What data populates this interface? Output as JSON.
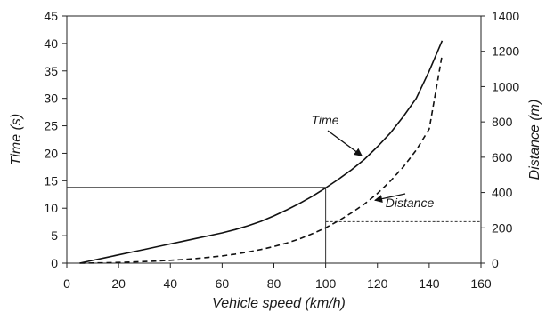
{
  "chart_data": {
    "type": "line",
    "xlabel": "Vehicle speed (km/h)",
    "ylabel_left": "Time (s)",
    "ylabel_right": "Distance (m)",
    "xlim": [
      0,
      160
    ],
    "ylim_left": [
      0,
      45
    ],
    "ylim_right": [
      0,
      1400
    ],
    "x_ticks": [
      "0",
      "20",
      "40",
      "60",
      "80",
      "100",
      "120",
      "140",
      "160"
    ],
    "y_left_ticks": [
      "0",
      "5",
      "10",
      "15",
      "20",
      "25",
      "30",
      "35",
      "40",
      "45"
    ],
    "y_right_ticks": [
      "0",
      "200",
      "400",
      "600",
      "800",
      "1000",
      "1200",
      "1400"
    ],
    "grid": false,
    "series": [
      {
        "name": "Time",
        "axis": "left",
        "style": "solid",
        "x": [
          5,
          10,
          15,
          20,
          25,
          30,
          35,
          40,
          45,
          50,
          55,
          60,
          65,
          70,
          75,
          80,
          85,
          90,
          95,
          100,
          105,
          110,
          115,
          120,
          125,
          130,
          135,
          140,
          145
        ],
        "y": [
          0,
          0.5,
          1.0,
          1.5,
          2.0,
          2.5,
          3.0,
          3.5,
          4.0,
          4.5,
          5.0,
          5.5,
          6.1,
          6.8,
          7.6,
          8.6,
          9.7,
          10.9,
          12.2,
          13.7,
          15.3,
          17.0,
          18.9,
          21.2,
          23.7,
          26.7,
          30.0,
          35.0,
          40.5
        ]
      },
      {
        "name": "Distance",
        "axis": "right",
        "style": "dashed",
        "x": [
          5,
          10,
          15,
          20,
          25,
          30,
          35,
          40,
          45,
          50,
          55,
          60,
          65,
          70,
          75,
          80,
          85,
          90,
          95,
          100,
          105,
          110,
          115,
          120,
          125,
          130,
          135,
          140,
          145
        ],
        "y": [
          0,
          1,
          2,
          4,
          6,
          9,
          12,
          16,
          20,
          26,
          33,
          41,
          51,
          63,
          77,
          94,
          114,
          138,
          167,
          200,
          240,
          285,
          335,
          395,
          465,
          545,
          640,
          760,
          1180
        ]
      }
    ],
    "annotations": [
      {
        "text": "Time",
        "target_series": "Time",
        "target_x": 115
      },
      {
        "text": "Distance",
        "target_series": "Distance",
        "target_x": 118
      }
    ],
    "reference_lines": [
      {
        "x": 100,
        "y_left": 13.8,
        "y_right": 235
      }
    ]
  }
}
